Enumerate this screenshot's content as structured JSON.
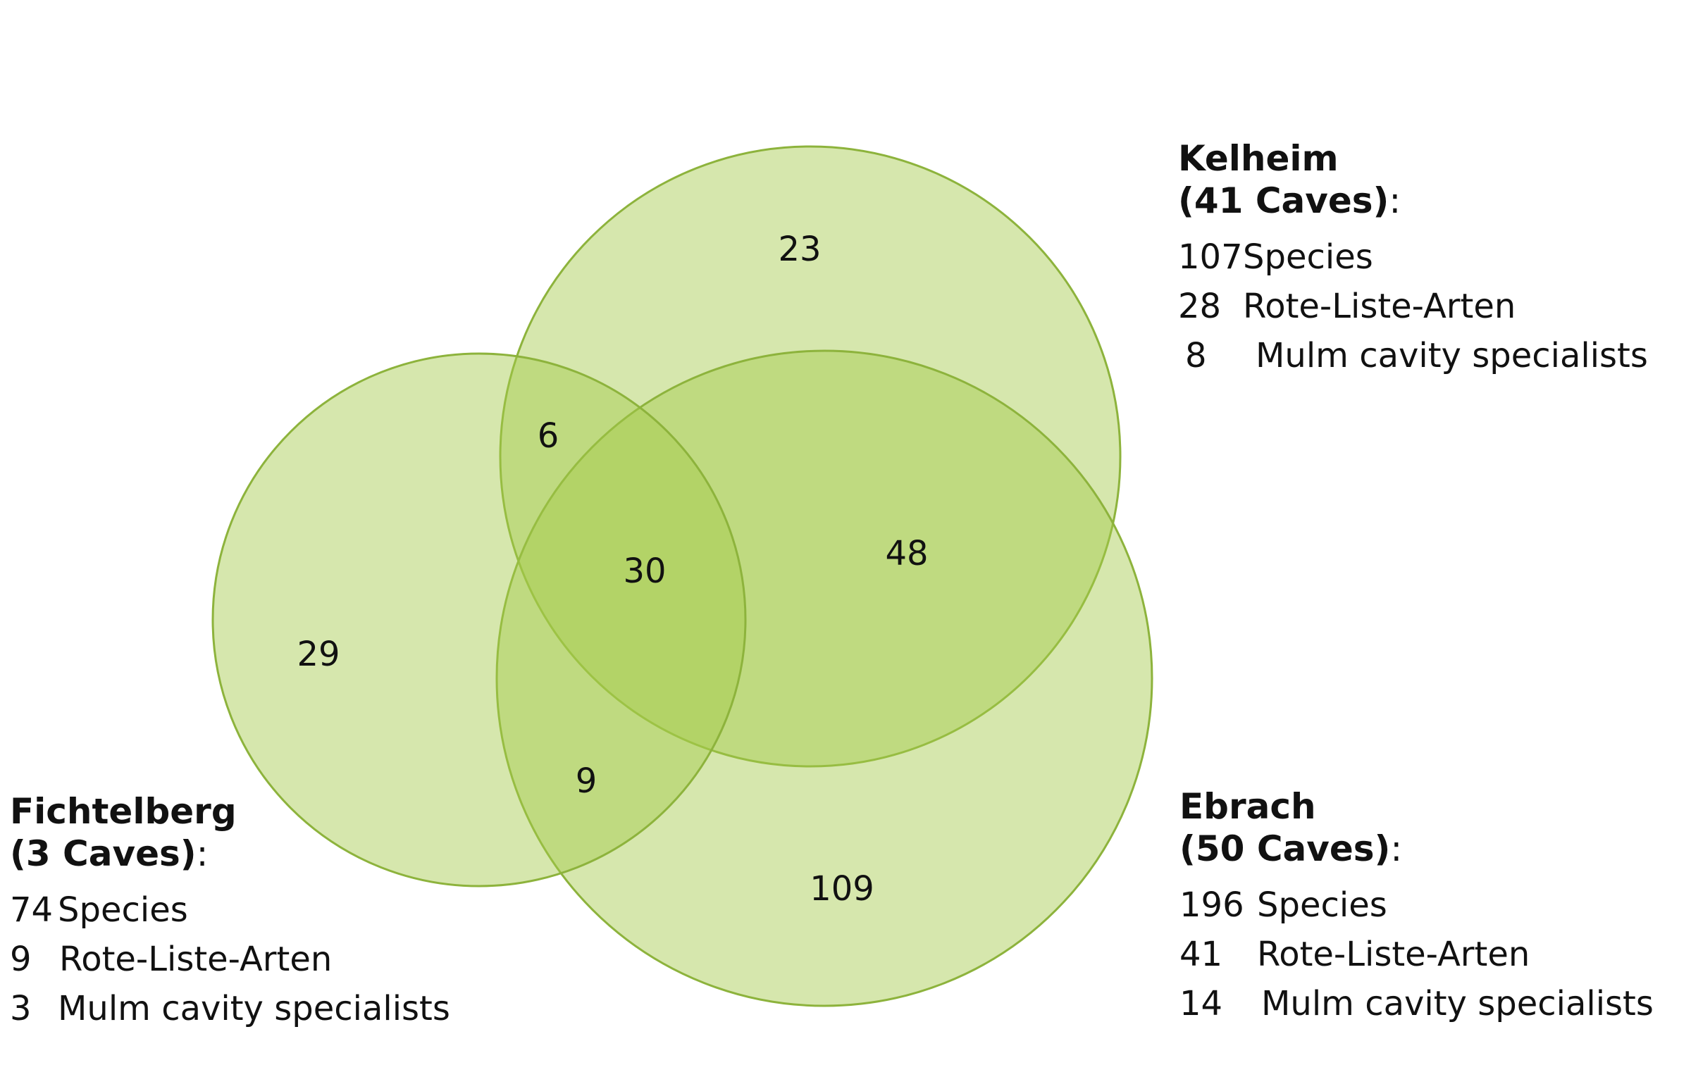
{
  "regions": {
    "kelheim_only": "23",
    "fichtelberg_only": "29",
    "ebrach_only": "109",
    "kelheim_fichtelberg": "6",
    "kelheim_ebrach": "48",
    "fichtelberg_ebrach": "9",
    "all_three": "30"
  },
  "legends": {
    "kelheim": {
      "name": "Kelheim",
      "caves": "(41 Caves)",
      "colon": ":",
      "species_count": "107",
      "species_label": "Species",
      "redlist_count": "28",
      "redlist_label": "Rote-Liste-Arten",
      "mulm_count": "8",
      "mulm_label": "Mulm cavity specialists"
    },
    "ebrach": {
      "name": "Ebrach",
      "caves": "(50 Caves)",
      "colon": ":",
      "species_count": "196",
      "species_label": "Species",
      "redlist_count": "41",
      "redlist_label": "Rote-Liste-Arten",
      "mulm_count": "14",
      "mulm_label": "Mulm cavity specialists"
    },
    "fichtelberg": {
      "name": "Fichtelberg",
      "caves": "(3 Caves)",
      "colon": ":",
      "species_count": "74",
      "species_label": "Species",
      "redlist_count": "9",
      "redlist_label": "Rote-Liste-Arten",
      "mulm_count": "3",
      "mulm_label": "Mulm cavity specialists"
    }
  },
  "colors": {
    "circle_fill": "#a4c949",
    "circle_stroke": "#8db33c"
  }
}
